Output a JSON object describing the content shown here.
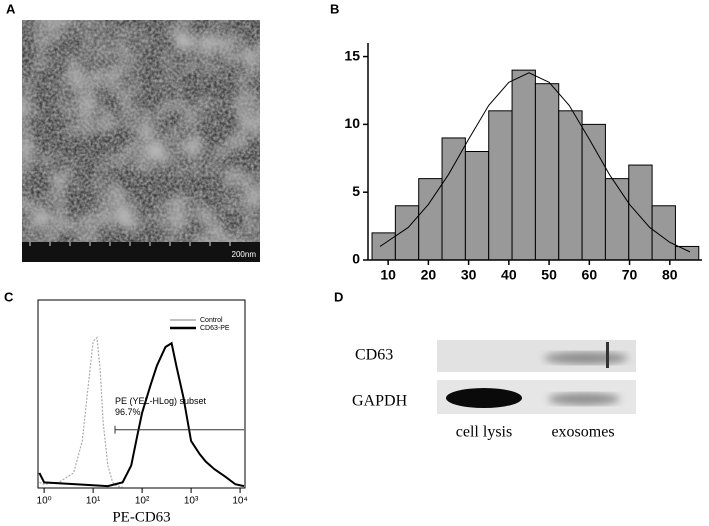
{
  "panel_labels": [
    "A",
    "B",
    "C",
    "D"
  ],
  "image": {
    "scale_bar": "200nm"
  },
  "blot": {
    "rows": [
      "CD63",
      "GAPDH"
    ],
    "lanes": [
      "cell lysis",
      "exosomes"
    ]
  },
  "chart_data": [
    {
      "type": "histogram",
      "color": "#999999",
      "bins": [
        6,
        11.8,
        17.6,
        23.4,
        29.2,
        35,
        40.8,
        46.6,
        52.4,
        58.2,
        64,
        69.8,
        75.6,
        81.4,
        87.2
      ],
      "values": [
        2,
        4,
        6,
        9,
        8,
        11,
        14,
        13,
        11,
        10,
        6,
        7,
        4,
        1
      ],
      "fit": {
        "x": [
          8,
          15,
          20,
          25,
          30,
          35,
          40,
          45,
          50,
          55,
          60,
          65,
          70,
          75,
          80,
          85
        ],
        "values": [
          1,
          2.4,
          4.1,
          6.3,
          8.9,
          11.4,
          13.1,
          13.8,
          13.1,
          11.4,
          8.9,
          6.3,
          4.1,
          2.4,
          1.3,
          0.6
        ]
      },
      "xlim": [
        5,
        88
      ],
      "ylim": [
        0,
        16
      ],
      "xticks": [
        10,
        20,
        30,
        40,
        50,
        60,
        70,
        80
      ],
      "yticks": [
        0,
        5,
        10,
        15
      ]
    },
    {
      "type": "line",
      "log_x": true,
      "x_label": "PE-CD63",
      "xlim": [
        0.75,
        12600
      ],
      "ylim": [
        0,
        100
      ],
      "xticks": [
        {
          "value": 1,
          "label": "10⁰"
        },
        {
          "value": 10,
          "label": "10¹"
        },
        {
          "value": 100,
          "label": "10²"
        },
        {
          "value": 1000,
          "label": "10³"
        },
        {
          "value": 10000,
          "label": "10⁴"
        }
      ],
      "series": [
        {
          "name": "Control",
          "color": "#aaaaaa",
          "x": [
            0.8,
            1,
            2,
            4,
            6,
            8,
            10,
            12,
            14,
            16,
            20,
            25,
            30,
            40
          ],
          "values": [
            3,
            2,
            3,
            8,
            25,
            55,
            78,
            80,
            62,
            35,
            12,
            3,
            1,
            0.5
          ]
        },
        {
          "name": "CD63-PE",
          "color": "#000000",
          "x": [
            0.8,
            1,
            20,
            40,
            60,
            80,
            100,
            150,
            200,
            300,
            400,
            500,
            700,
            1000,
            1500,
            2000,
            3000,
            5000,
            8000,
            12000
          ],
          "values": [
            8,
            3,
            1,
            3,
            12,
            28,
            40,
            55,
            65,
            75,
            77,
            65,
            48,
            25,
            18,
            14,
            10,
            6,
            2,
            1
          ]
        }
      ],
      "gate": {
        "label": "PE (YEL-HLog) subset",
        "annotation": "96.7%",
        "x": [
          28,
          12000
        ],
        "y": 31
      }
    }
  ]
}
